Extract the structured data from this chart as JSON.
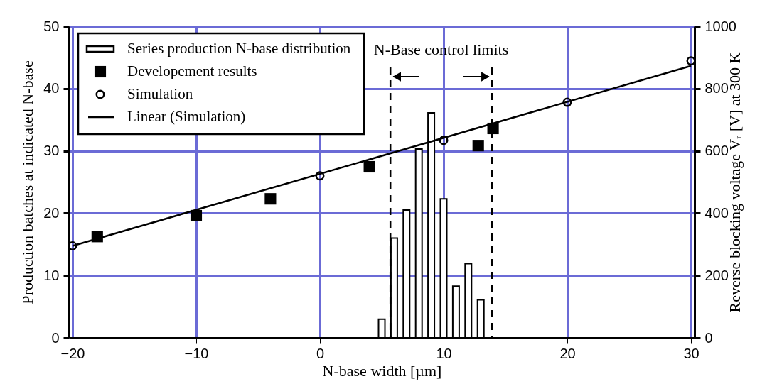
{
  "chart_data": {
    "type": "bar",
    "xlabel": "N-base width [µm]",
    "ylabel": "Production batches at indicated N-base",
    "y2label": "Reverse blocking voltage Vᵣ [V] at 300 K",
    "xlim": [
      -20,
      30
    ],
    "xticks": [
      -20,
      -10,
      0,
      10,
      20,
      30
    ],
    "ylim": [
      0,
      50
    ],
    "yticks": [
      0,
      10,
      20,
      30,
      40,
      50
    ],
    "y2lim": [
      0,
      1000
    ],
    "y2ticks": [
      0,
      200,
      400,
      600,
      800,
      1000
    ],
    "grid": true,
    "legend": "top left",
    "series": [
      {
        "name": "Series production N-base distribution",
        "color": "#ffffff",
        "x": [
          5,
          6,
          7,
          8,
          9,
          10,
          11,
          12,
          13
        ],
        "values": [
          3,
          16,
          20.5,
          30.3,
          36.1,
          22.3,
          8.3,
          11.9,
          6.1
        ]
      },
      {
        "name": "Developement results",
        "type": "scatter",
        "marker": "square",
        "axis": "y2",
        "color": "#000000",
        "x": [
          -18,
          -10,
          -4,
          4,
          12.8,
          14
        ],
        "values": [
          325,
          392,
          446,
          549,
          617,
          672
        ]
      },
      {
        "name": "Simulation",
        "type": "scatter",
        "marker": "circle",
        "axis": "y2",
        "color": "#000000",
        "x": [
          -20,
          0,
          10,
          20,
          30
        ],
        "values": [
          295,
          520,
          634,
          756,
          889
        ]
      },
      {
        "name": "Linear (Simulation)",
        "type": "line",
        "axis": "y2",
        "color": "#000000",
        "x": [
          -20,
          30
        ],
        "values": [
          295,
          873
        ]
      }
    ],
    "ref_lines": [
      {
        "axis": "x",
        "value": 5.7,
        "line_style": "dashed",
        "color": "#000000"
      },
      {
        "axis": "x",
        "value": 13.9,
        "line_style": "dashed",
        "color": "#000000"
      }
    ],
    "annotations": [
      "N-Base control limits"
    ]
  }
}
